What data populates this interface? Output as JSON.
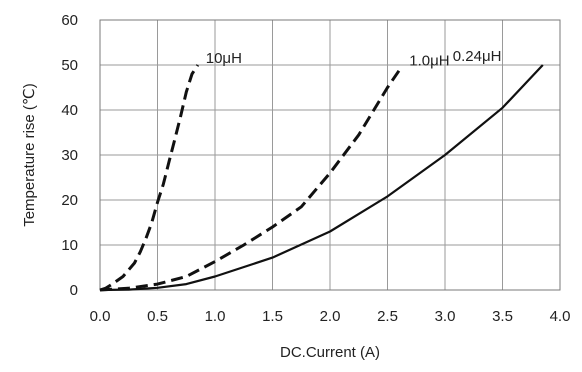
{
  "chart_data": {
    "type": "line",
    "title": "",
    "xlabel": "DC.Current (A)",
    "ylabel": "Temperature rise (℃)",
    "xlim": [
      0,
      4.0
    ],
    "ylim": [
      0,
      60
    ],
    "grid": true,
    "x_ticks": [
      "0.0",
      "0.5",
      "1.0",
      "1.5",
      "2.0",
      "2.5",
      "3.0",
      "3.5",
      "4.0"
    ],
    "y_ticks": [
      "0",
      "10",
      "20",
      "30",
      "40",
      "50",
      "60"
    ],
    "series": [
      {
        "name": "10μH",
        "style": "dashed",
        "color": "#111111",
        "x": [
          0.0,
          0.05,
          0.1,
          0.2,
          0.3,
          0.35,
          0.4,
          0.45,
          0.5,
          0.55,
          0.6,
          0.65,
          0.7,
          0.75,
          0.8,
          0.85
        ],
        "y": [
          0.0,
          0.4,
          1.2,
          3.0,
          6.0,
          8.5,
          11.5,
          15.0,
          19.5,
          23.5,
          28.5,
          33.5,
          38.5,
          44.0,
          48.0,
          50.0
        ]
      },
      {
        "name": "1.0μH",
        "style": "dashed",
        "color": "#111111",
        "x": [
          0.0,
          0.25,
          0.5,
          0.75,
          1.0,
          1.25,
          1.5,
          1.75,
          2.0,
          2.25,
          2.5,
          2.62
        ],
        "y": [
          0.0,
          0.4,
          1.3,
          3.0,
          6.3,
          10.0,
          14.0,
          18.5,
          26.0,
          34.5,
          45.0,
          49.5
        ]
      },
      {
        "name": "0.24μH",
        "style": "solid",
        "color": "#111111",
        "x": [
          0.0,
          0.25,
          0.5,
          0.75,
          1.0,
          1.5,
          2.0,
          2.5,
          3.0,
          3.5,
          3.85
        ],
        "y": [
          0.0,
          0.1,
          0.5,
          1.3,
          3.0,
          7.2,
          13.0,
          20.8,
          30.0,
          40.5,
          50.0
        ]
      }
    ]
  }
}
